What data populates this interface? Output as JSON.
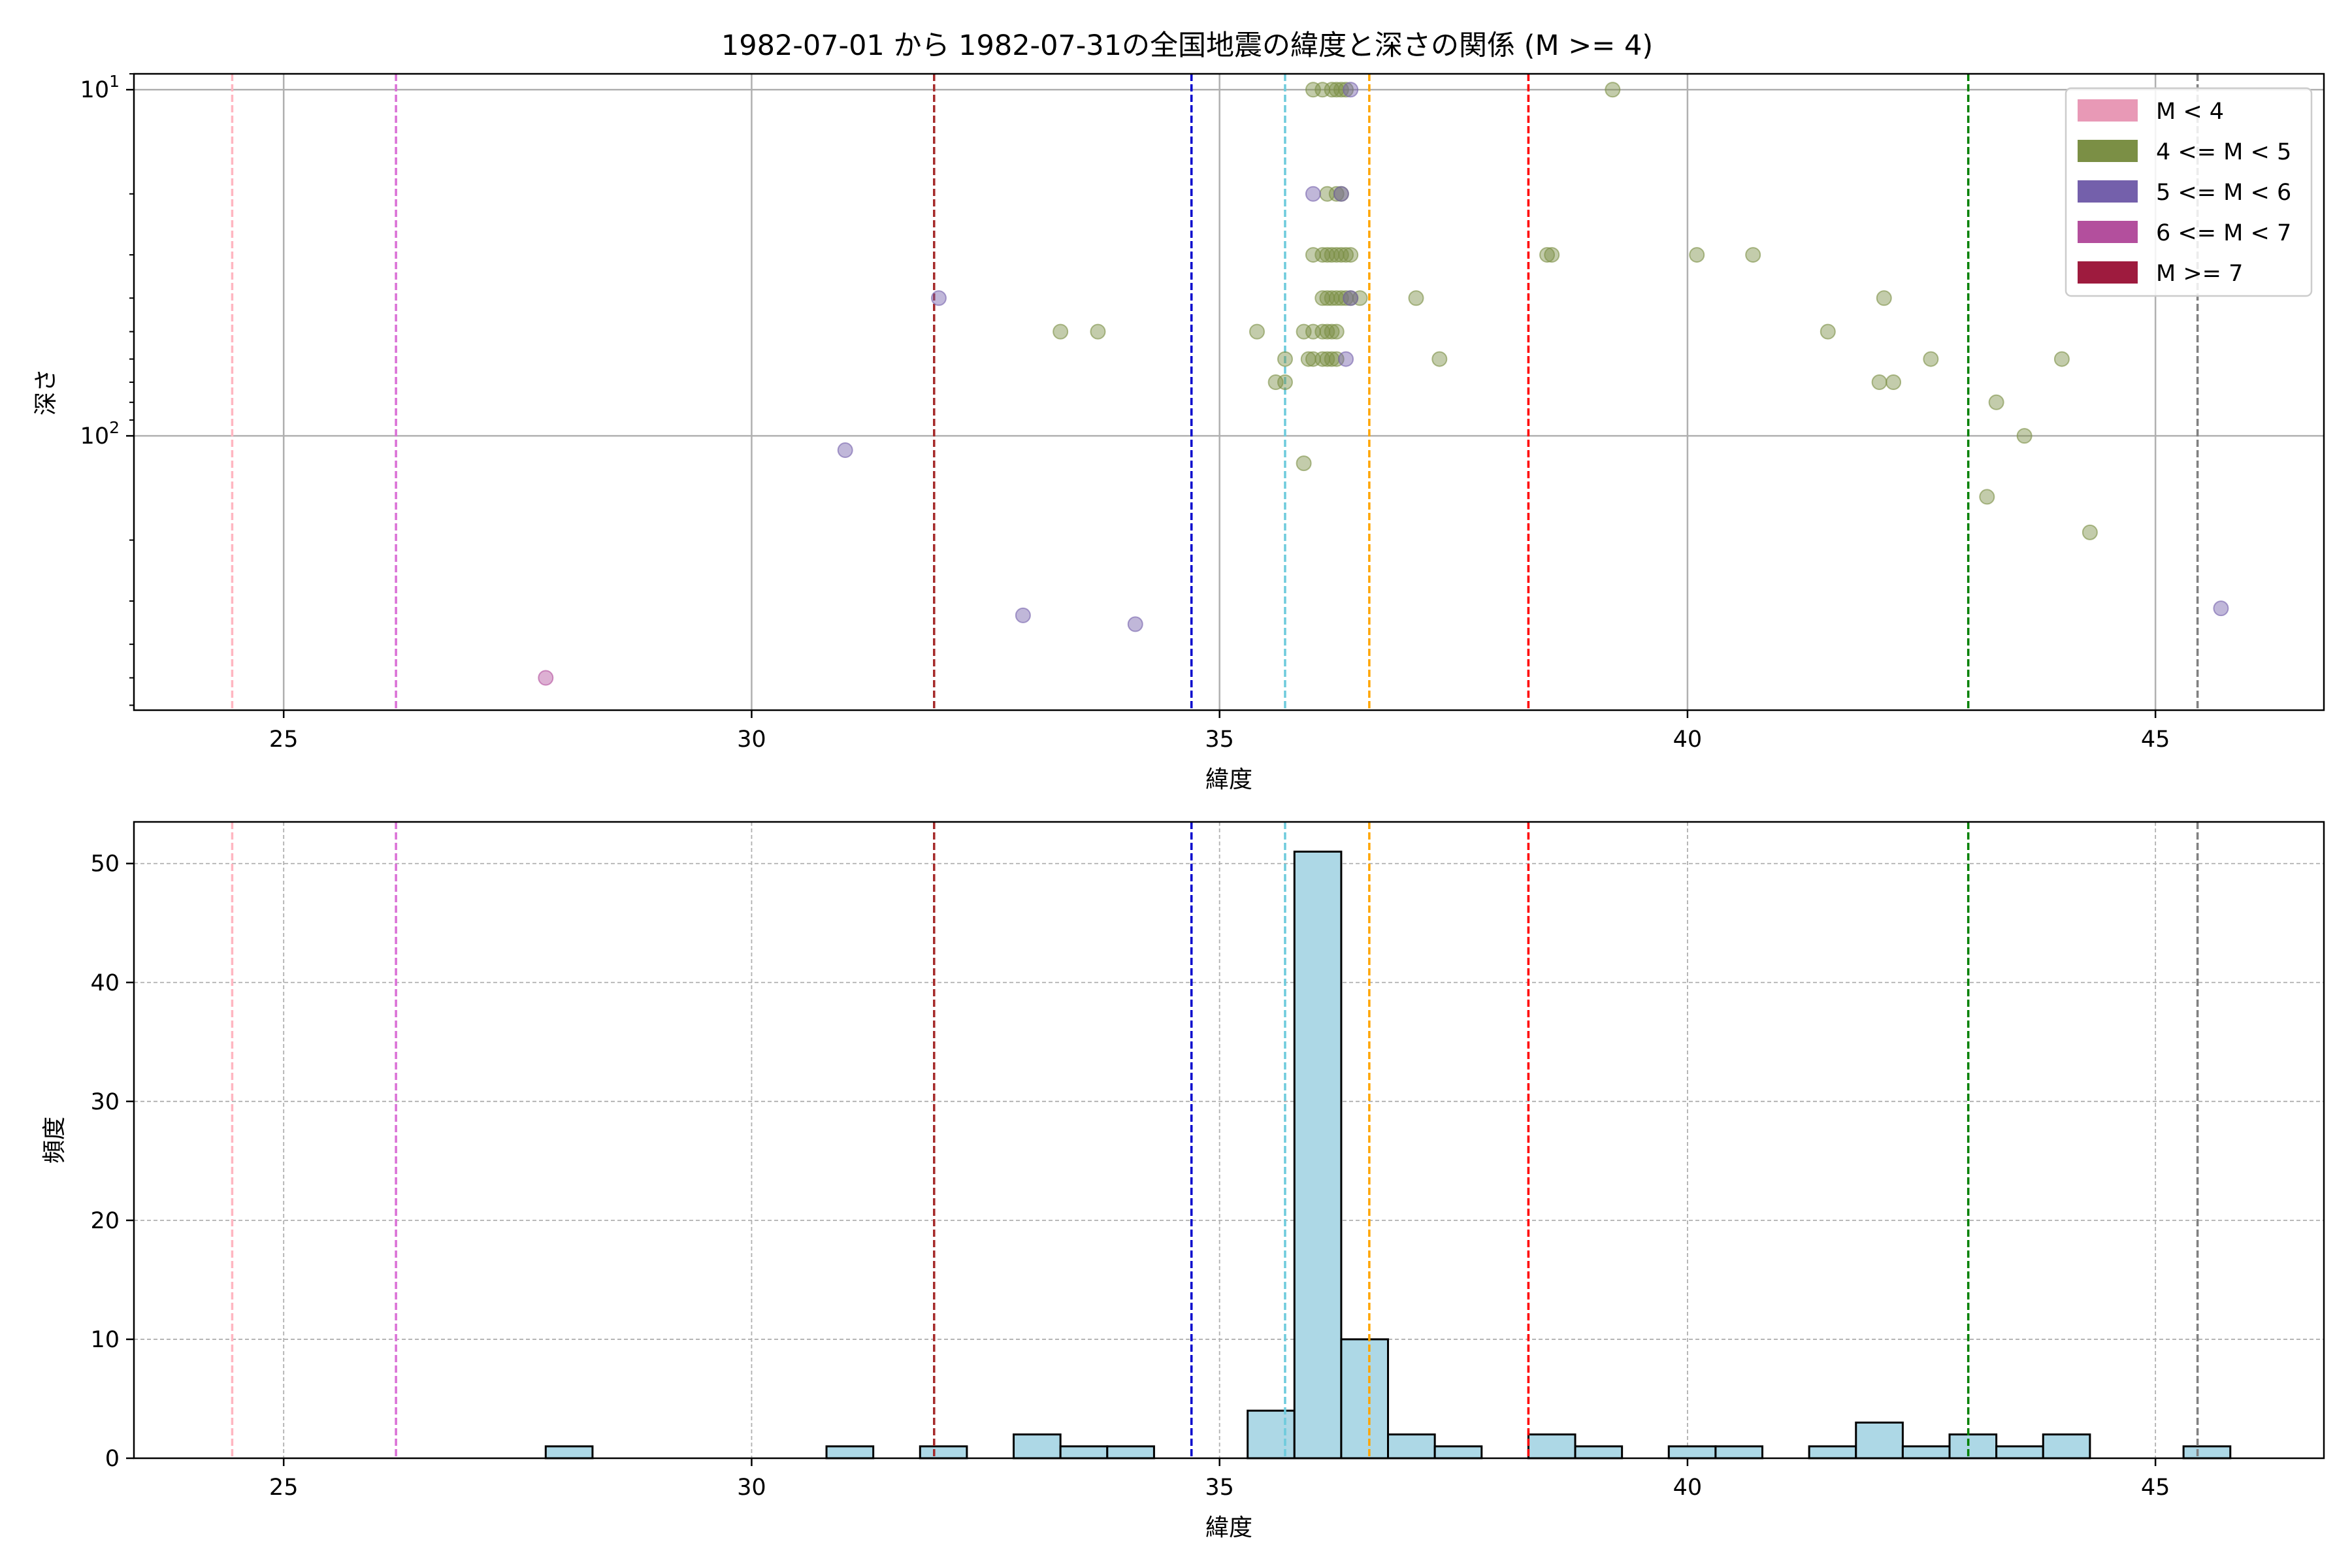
{
  "chart_data": [
    {
      "type": "scatter",
      "title": "1982-07-01 から 1982-07-31の全国地震の緯度と深さの関係 (M >= 4)",
      "xlabel": "緯度",
      "ylabel": "深さ",
      "xlim": [
        23.4,
        46.8
      ],
      "ylim": [
        620,
        9
      ],
      "y_scale": "log-inverted",
      "grid": true,
      "legend_position": "top-right",
      "xticks": [
        25,
        30,
        35,
        40,
        45
      ],
      "xtick_labels": [
        "25",
        "30",
        "35",
        "40",
        "45"
      ],
      "yticks": [
        10,
        100
      ],
      "ytick_labels": [
        "10^1",
        "10^2"
      ],
      "legend": [
        {
          "label": "M < 4",
          "color": "#e899b6"
        },
        {
          "label": "4 <= M < 5",
          "color": "#7b8f45"
        },
        {
          "label": "5 <= M < 6",
          "color": "#7460ab"
        },
        {
          "label": "6 <= M < 7",
          "color": "#b34f9d"
        },
        {
          "label": "M >= 7",
          "color": "#9e1b3e"
        }
      ],
      "series": [
        {
          "name": "4 <= M < 5",
          "color": "#7b8f45",
          "points": [
            [
              36.0,
              10
            ],
            [
              36.1,
              10
            ],
            [
              36.2,
              10
            ],
            [
              36.25,
              10
            ],
            [
              36.3,
              10
            ],
            [
              36.35,
              10
            ],
            [
              39.2,
              10
            ],
            [
              36.15,
              20
            ],
            [
              36.25,
              20
            ],
            [
              36.3,
              20
            ],
            [
              36.0,
              30
            ],
            [
              36.1,
              30
            ],
            [
              36.15,
              30
            ],
            [
              36.2,
              30
            ],
            [
              36.25,
              30
            ],
            [
              36.3,
              30
            ],
            [
              36.35,
              30
            ],
            [
              36.4,
              30
            ],
            [
              38.5,
              30
            ],
            [
              38.55,
              30
            ],
            [
              40.1,
              30
            ],
            [
              40.7,
              30
            ],
            [
              36.1,
              40
            ],
            [
              36.15,
              40
            ],
            [
              36.2,
              40
            ],
            [
              36.25,
              40
            ],
            [
              36.3,
              40
            ],
            [
              36.35,
              40
            ],
            [
              36.4,
              40
            ],
            [
              36.5,
              40
            ],
            [
              37.1,
              40
            ],
            [
              42.1,
              40
            ],
            [
              33.3,
              50
            ],
            [
              33.7,
              50
            ],
            [
              35.4,
              50
            ],
            [
              35.9,
              50
            ],
            [
              36.0,
              50
            ],
            [
              36.1,
              50
            ],
            [
              36.15,
              50
            ],
            [
              36.2,
              50
            ],
            [
              36.25,
              50
            ],
            [
              41.5,
              50
            ],
            [
              35.7,
              60
            ],
            [
              35.95,
              60
            ],
            [
              36.0,
              60
            ],
            [
              36.1,
              60
            ],
            [
              36.15,
              60
            ],
            [
              36.2,
              60
            ],
            [
              36.25,
              60
            ],
            [
              37.35,
              60
            ],
            [
              42.6,
              60
            ],
            [
              44.0,
              60
            ],
            [
              35.6,
              70
            ],
            [
              35.7,
              70
            ],
            [
              42.05,
              70
            ],
            [
              42.2,
              70
            ],
            [
              43.3,
              80
            ],
            [
              43.6,
              100
            ],
            [
              35.9,
              120
            ],
            [
              43.2,
              150
            ],
            [
              44.3,
              190
            ]
          ]
        },
        {
          "name": "5 <= M < 6",
          "color": "#7460ab",
          "points": [
            [
              36.0,
              20
            ],
            [
              36.3,
              20
            ],
            [
              36.4,
              10
            ],
            [
              36.4,
              40
            ],
            [
              32.0,
              40
            ],
            [
              36.35,
              60
            ],
            [
              31.0,
              110
            ],
            [
              32.9,
              330
            ],
            [
              34.1,
              350
            ],
            [
              45.7,
              315
            ]
          ]
        },
        {
          "name": "6 <= M < 7",
          "color": "#b34f9d",
          "points": [
            [
              27.8,
              500
            ]
          ]
        }
      ],
      "vlines": [
        {
          "x": 24.45,
          "color": "#ffb6c1"
        },
        {
          "x": 26.2,
          "color": "#da70d6"
        },
        {
          "x": 31.95,
          "color": "#a52a2a"
        },
        {
          "x": 34.7,
          "color": "#0000cd"
        },
        {
          "x": 35.7,
          "color": "#6ecbdc"
        },
        {
          "x": 36.6,
          "color": "#ffa500"
        },
        {
          "x": 38.3,
          "color": "#ff0000"
        },
        {
          "x": 43.0,
          "color": "#008000"
        },
        {
          "x": 45.45,
          "color": "#808080"
        }
      ]
    },
    {
      "type": "bar",
      "title": "",
      "xlabel": "緯度",
      "ylabel": "頻度",
      "xlim": [
        23.4,
        46.8
      ],
      "ylim": [
        0,
        53.5
      ],
      "grid": true,
      "xticks": [
        25,
        30,
        35,
        40,
        45
      ],
      "xtick_labels": [
        "25",
        "30",
        "35",
        "40",
        "45"
      ],
      "yticks": [
        0,
        10,
        20,
        30,
        40,
        50
      ],
      "ytick_labels": [
        "0",
        "10",
        "20",
        "30",
        "40",
        "50"
      ],
      "bar_color": "#add8e6",
      "bin_edges": [
        27.8,
        28.3,
        28.8,
        29.3,
        29.8,
        30.3,
        30.8,
        31.3,
        31.8,
        32.3,
        32.8,
        33.3,
        33.8,
        34.3,
        34.8,
        35.3,
        35.8,
        36.3,
        36.8,
        37.3,
        37.8,
        38.3,
        38.8,
        39.3,
        39.8,
        40.3,
        40.8,
        41.3,
        41.8,
        42.3,
        42.8,
        43.3,
        43.8,
        44.3,
        44.8,
        45.3,
        45.8
      ],
      "values": [
        1,
        0,
        0,
        0,
        0,
        0,
        1,
        0,
        1,
        0,
        2,
        1,
        1,
        0,
        0,
        4,
        51,
        10,
        2,
        1,
        0,
        2,
        1,
        0,
        1,
        1,
        0,
        1,
        3,
        1,
        2,
        1,
        2,
        0,
        0,
        1
      ],
      "vlines": [
        {
          "x": 24.45,
          "color": "#ffb6c1"
        },
        {
          "x": 26.2,
          "color": "#da70d6"
        },
        {
          "x": 31.95,
          "color": "#a52a2a"
        },
        {
          "x": 34.7,
          "color": "#0000cd"
        },
        {
          "x": 35.7,
          "color": "#6ecbdc"
        },
        {
          "x": 36.6,
          "color": "#ffa500"
        },
        {
          "x": 38.3,
          "color": "#ff0000"
        },
        {
          "x": 43.0,
          "color": "#008000"
        },
        {
          "x": 45.45,
          "color": "#808080"
        }
      ]
    }
  ]
}
